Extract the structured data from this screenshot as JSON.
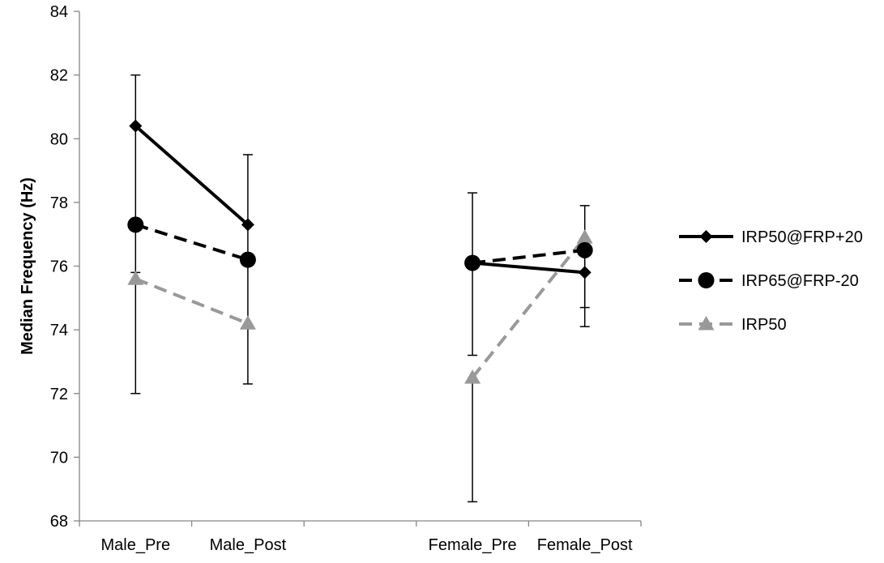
{
  "chart_data": {
    "type": "line",
    "title": "",
    "xlabel": "",
    "ylabel": "Median Frequency (Hz)",
    "ylim": [
      68,
      84
    ],
    "yticks": [
      68,
      70,
      72,
      74,
      76,
      78,
      80,
      82,
      84
    ],
    "categories": [
      "Male_Pre",
      "Male_Post",
      "",
      "Female_Pre",
      "Female_Post"
    ],
    "grid": false,
    "legend_position": "right",
    "series": [
      {
        "name": "IRP50@FRP+20",
        "color": "#000000",
        "dash": "solid",
        "marker": "diamond",
        "values": [
          80.4,
          77.3,
          null,
          76.1,
          75.8
        ],
        "err_low": [
          72.0,
          72.3,
          null,
          73.2,
          74.1
        ],
        "err_high": [
          82.0,
          79.5,
          null,
          78.3,
          77.9
        ]
      },
      {
        "name": "IRP65@FRP-20",
        "color": "#000000",
        "dash": "dashed",
        "marker": "circle",
        "values": [
          77.3,
          76.2,
          null,
          76.1,
          76.5
        ],
        "err_low": [
          null,
          null,
          null,
          null,
          null
        ],
        "err_high": [
          null,
          null,
          null,
          null,
          null
        ]
      },
      {
        "name": "IRP50",
        "color": "#999999",
        "dash": "dashed",
        "marker": "triangle",
        "values": [
          75.6,
          74.2,
          null,
          72.5,
          76.9
        ],
        "err_low": [
          null,
          null,
          null,
          68.6,
          74.7
        ],
        "err_high": [
          75.8,
          null,
          null,
          null,
          null
        ]
      }
    ]
  }
}
